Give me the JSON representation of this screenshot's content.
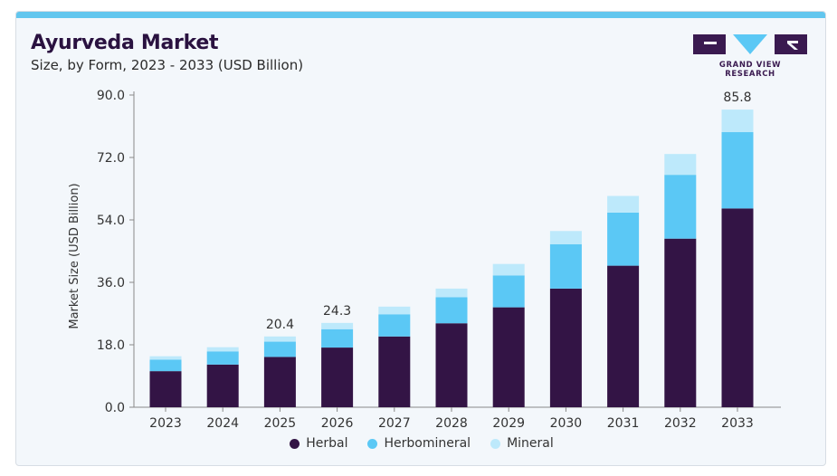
{
  "header": {
    "title": "Ayurveda Market",
    "subtitle": "Size, by Form, 2023 - 2033 (USD Billion)",
    "logo_text": "GRAND VIEW RESEARCH"
  },
  "colors": {
    "herbal": "#331445",
    "herbomineral": "#5bc8f5",
    "mineral": "#bde9fb",
    "accent": "#62c6ee",
    "logo": "#3a1a50"
  },
  "chart_data": {
    "type": "bar",
    "stacked": true,
    "title": "Ayurveda Market",
    "subtitle": "Size, by Form, 2023 - 2033 (USD Billion)",
    "ylabel": "Market Size (USD Billion)",
    "xlabel": "",
    "ylim": [
      0,
      90
    ],
    "yticks": [
      "0.0",
      "18.0",
      "36.0",
      "54.0",
      "72.0",
      "90.0"
    ],
    "categories": [
      "2023",
      "2024",
      "2025",
      "2026",
      "2027",
      "2028",
      "2029",
      "2030",
      "2031",
      "2032",
      "2033"
    ],
    "series": [
      {
        "name": "Herbal",
        "values": [
          10.4,
          12.3,
          14.5,
          17.2,
          20.4,
          24.2,
          28.8,
          34.2,
          40.8,
          48.6,
          57.3
        ]
      },
      {
        "name": "Herbomineral",
        "values": [
          3.3,
          3.8,
          4.4,
          5.3,
          6.4,
          7.5,
          9.2,
          12.8,
          15.3,
          18.4,
          22.0
        ]
      },
      {
        "name": "Mineral",
        "values": [
          1.0,
          1.2,
          1.5,
          1.8,
          2.2,
          2.5,
          3.3,
          3.8,
          4.8,
          6.0,
          6.5
        ]
      }
    ],
    "data_labels": [
      {
        "category": "2025",
        "text": "20.4"
      },
      {
        "category": "2026",
        "text": "24.3"
      },
      {
        "category": "2033",
        "text": "85.8"
      }
    ],
    "legend": {
      "position": "bottom",
      "entries": [
        "Herbal",
        "Herbomineral",
        "Mineral"
      ]
    },
    "grid": false
  }
}
